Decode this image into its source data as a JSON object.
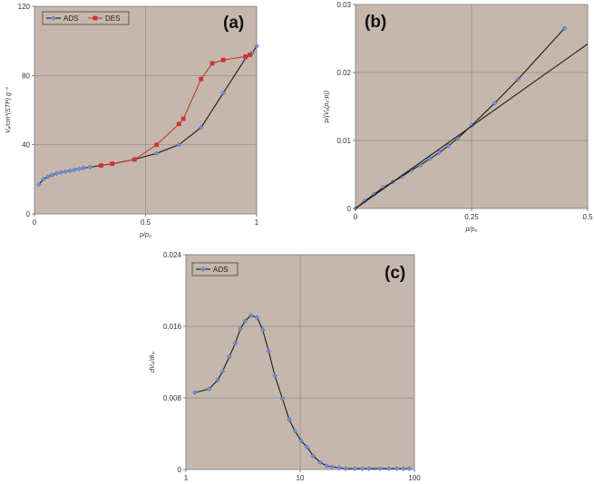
{
  "chart_data": [
    {
      "id": "a",
      "type": "line",
      "panel_label": "(a)",
      "xlabel": "p/p₀",
      "ylabel": "Vₐ/cm³(STP) g⁻¹",
      "xlim": [
        0,
        1
      ],
      "ylim": [
        0,
        120
      ],
      "x_ticks": [
        0,
        0.5,
        1
      ],
      "x_tick_labels": [
        "0",
        "0.5",
        "1"
      ],
      "y_ticks": [
        0,
        40,
        80,
        120
      ],
      "y_tick_labels": [
        "0",
        "40",
        "80",
        "120"
      ],
      "legend": [
        "ADS",
        "DES"
      ],
      "series": [
        {
          "name": "ADS",
          "color": "#1a1a1a",
          "marker": "diamond",
          "marker_color": "#6f8fd0",
          "x": [
            0.02,
            0.04,
            0.06,
            0.08,
            0.1,
            0.12,
            0.14,
            0.16,
            0.18,
            0.2,
            0.22,
            0.25,
            0.3,
            0.35,
            0.45,
            0.55,
            0.65,
            0.75,
            0.85,
            0.95,
            0.98,
            1.0
          ],
          "y": [
            17,
            20,
            21.5,
            22.5,
            23.5,
            24,
            24.5,
            25,
            25.5,
            26,
            26.5,
            27,
            28,
            29,
            31.5,
            35,
            40,
            50,
            70,
            90,
            93,
            97
          ]
        },
        {
          "name": "DES",
          "color": "#cc3333",
          "marker": "square",
          "marker_color": "#cc3333",
          "x": [
            0.3,
            0.35,
            0.45,
            0.55,
            0.65,
            0.67,
            0.75,
            0.8,
            0.85,
            0.95,
            0.97
          ],
          "y": [
            28,
            29,
            31.5,
            40,
            52,
            55,
            78,
            87,
            89,
            91,
            92
          ]
        }
      ]
    },
    {
      "id": "b",
      "type": "line",
      "panel_label": "(b)",
      "xlabel": "p/p₀",
      "ylabel": "p/(Vₐ(p₀-p))",
      "xlim": [
        0,
        0.5
      ],
      "ylim": [
        0,
        0.03
      ],
      "x_ticks": [
        0,
        0.25,
        0.5
      ],
      "x_tick_labels": [
        "0",
        "0.25",
        "0.5"
      ],
      "y_ticks": [
        0,
        0.01,
        0.02,
        0.03
      ],
      "y_tick_labels": [
        "0",
        "0.01",
        "0.02",
        "0.03"
      ],
      "series": [
        {
          "name": "data",
          "color": "#1a1a1a",
          "marker": "diamond",
          "marker_color": "#6f8fd0",
          "x": [
            0,
            0.02,
            0.04,
            0.06,
            0.08,
            0.1,
            0.12,
            0.14,
            0.16,
            0.18,
            0.2,
            0.22,
            0.25,
            0.3,
            0.35,
            0.45
          ],
          "y": [
            0,
            0.0011,
            0.0021,
            0.0031,
            0.0039,
            0.0047,
            0.0056,
            0.0064,
            0.0073,
            0.0082,
            0.0092,
            0.0103,
            0.0122,
            0.0155,
            0.019,
            0.0265
          ]
        },
        {
          "name": "linear fit",
          "color": "#1a1a1a",
          "marker": "none",
          "x": [
            0,
            0.5
          ],
          "y": [
            0,
            0.0242
          ]
        }
      ]
    },
    {
      "id": "c",
      "type": "line",
      "panel_label": "(c)",
      "xlabel": "",
      "ylabel": "dVₚ/drₚ",
      "xscale": "log",
      "xlim": [
        1,
        100
      ],
      "ylim": [
        0,
        0.024
      ],
      "x_ticks": [
        1,
        10,
        100
      ],
      "x_tick_labels": [
        "1",
        "10",
        "100"
      ],
      "y_ticks": [
        0,
        0.008,
        0.016,
        0.024
      ],
      "y_tick_labels": [
        "0",
        "0.008",
        "0.016",
        "0.024"
      ],
      "legend": [
        "ADS"
      ],
      "series": [
        {
          "name": "ADS",
          "color": "#1a1a1a",
          "marker": "diamond",
          "marker_color": "#6f8fd0",
          "x": [
            1.2,
            1.6,
            1.9,
            2.1,
            2.4,
            2.7,
            3.0,
            3.3,
            3.7,
            4.2,
            4.7,
            5.3,
            6.0,
            7.0,
            8.0,
            9.0,
            10.2,
            11.5,
            13,
            15,
            17,
            19,
            22,
            25,
            30,
            35,
            40,
            50,
            60,
            70,
            80,
            90
          ],
          "y": [
            0.0086,
            0.009,
            0.01,
            0.011,
            0.0126,
            0.0141,
            0.0157,
            0.0166,
            0.0172,
            0.017,
            0.0156,
            0.0132,
            0.0105,
            0.0079,
            0.0056,
            0.0043,
            0.0032,
            0.0025,
            0.0015,
            0.0008,
            0.0004,
            0.0003,
            0.0002,
            0.0001,
            0.0001,
            0.0001,
            0.0001,
            0.0001,
            0.0001,
            0.0001,
            0.0001,
            0.0001
          ]
        }
      ]
    }
  ]
}
